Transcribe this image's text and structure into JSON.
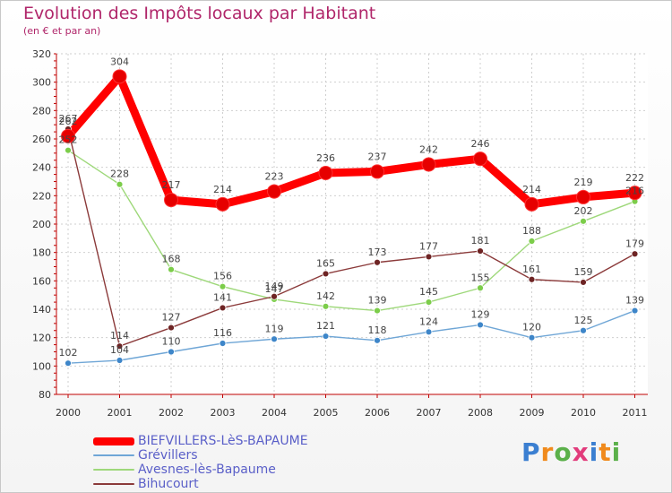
{
  "title": "Evolution des Impôts locaux par Habitant",
  "subtitle": "(en € et par an)",
  "logo": {
    "text": "Proxiti",
    "colors": [
      "#3b7fd1",
      "#f08a1c",
      "#5bb04a",
      "#e23c7c",
      "#3b7fd1",
      "#f08a1c",
      "#5bb04a"
    ]
  },
  "chart_data": {
    "type": "line",
    "x": [
      "2000",
      "2001",
      "2002",
      "2003",
      "2004",
      "2005",
      "2006",
      "2007",
      "2008",
      "2009",
      "2010",
      "2011"
    ],
    "ylim": [
      80,
      320
    ],
    "yticks": [
      80,
      100,
      120,
      140,
      160,
      180,
      200,
      220,
      240,
      260,
      280,
      300,
      320
    ],
    "grid": true,
    "legend_position": "bottom-left",
    "series": [
      {
        "name": "BIEFVILLERS-LèS-BAPAUME",
        "values": [
          262,
          304,
          217,
          214,
          223,
          236,
          237,
          242,
          246,
          214,
          219,
          222
        ],
        "labels": [
          "262",
          "304",
          "217",
          "214",
          "223",
          "236",
          "237",
          "242",
          "246",
          "214",
          "219",
          "222"
        ],
        "color": "#ff0000",
        "marker_color": "#e60000",
        "thick": true
      },
      {
        "name": "Grévillers",
        "values": [
          102,
          104,
          110,
          116,
          119,
          121,
          118,
          124,
          129,
          120,
          125,
          139
        ],
        "labels": [
          "102",
          "104",
          "110",
          "116",
          "119",
          "121",
          "118",
          "124",
          "129",
          "120",
          "125",
          "139"
        ],
        "color": "#6fa6d6",
        "marker_color": "#3e86c9",
        "thick": false
      },
      {
        "name": "Avesnes-lès-Bapaume",
        "values": [
          252,
          228,
          168,
          156,
          147,
          142,
          139,
          145,
          155,
          188,
          202,
          216
        ],
        "labels": [
          "252",
          "228",
          "168",
          "156",
          "147",
          "142",
          "139",
          "145",
          "155",
          "188",
          "202",
          "216"
        ],
        "color": "#9ed87a",
        "marker_color": "#7ccd4a",
        "thick": false
      },
      {
        "name": "Bihucourt",
        "values": [
          267,
          114,
          127,
          141,
          149,
          165,
          173,
          177,
          181,
          161,
          159,
          179
        ],
        "labels": [
          "267",
          "114",
          "127",
          "141",
          "149",
          "165",
          "173",
          "177",
          "181",
          "161",
          "159",
          "179"
        ],
        "color": "#8b3a3a",
        "marker_color": "#6e2424",
        "thick": false
      }
    ]
  }
}
